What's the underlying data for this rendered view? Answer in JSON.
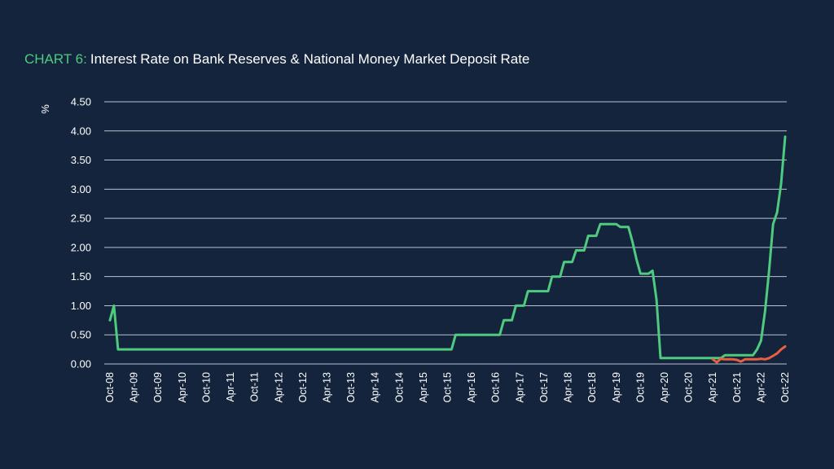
{
  "title_prefix": "CHART 6:",
  "title": "Interest Rate on Bank Reserves & National Money Market Deposit Rate",
  "colors": {
    "background": "#14243d",
    "title_prefix": "#4ecb7e",
    "series_1": "#4ecb7e",
    "series_2": "#e8603f",
    "grid": "#b9c2cf",
    "text": "#ffffff"
  },
  "chart_data": {
    "type": "line",
    "title": "Interest Rate on Bank Reserves & National Money Market Deposit Rate",
    "xlabel": "",
    "ylabel": "%",
    "ylim": [
      0,
      4.5
    ],
    "yticks": [
      "0.00",
      "0.50",
      "1.00",
      "1.50",
      "2.00",
      "2.50",
      "3.00",
      "3.50",
      "4.00",
      "4.50"
    ],
    "x_ticks": [
      "Oct-08",
      "Apr-09",
      "Oct-09",
      "Apr-10",
      "Oct-10",
      "Apr-11",
      "Oct-11",
      "Apr-12",
      "Oct-12",
      "Apr-13",
      "Oct-13",
      "Apr-14",
      "Oct-14",
      "Apr-15",
      "Oct-15",
      "Apr-16",
      "Oct-16",
      "Apr-17",
      "Oct-17",
      "Apr-18",
      "Oct-18",
      "Apr-19",
      "Oct-19",
      "Apr-20",
      "Oct-20",
      "Apr-21",
      "Oct-21",
      "Apr-22",
      "Oct-22"
    ],
    "grid": true,
    "legend": "none",
    "series": [
      {
        "color": "#4ecb7e",
        "points": [
          [
            "Oct-08",
            0.75
          ],
          [
            "Nov-08",
            1.0
          ],
          [
            "Dec-08",
            0.25
          ],
          [
            "Jan-09",
            0.25
          ],
          [
            "Nov-15",
            0.25
          ],
          [
            "Dec-15",
            0.5
          ],
          [
            "Nov-16",
            0.5
          ],
          [
            "Dec-16",
            0.75
          ],
          [
            "Feb-17",
            0.75
          ],
          [
            "Mar-17",
            1.0
          ],
          [
            "May-17",
            1.0
          ],
          [
            "Jun-17",
            1.25
          ],
          [
            "Nov-17",
            1.25
          ],
          [
            "Dec-17",
            1.5
          ],
          [
            "Feb-18",
            1.5
          ],
          [
            "Mar-18",
            1.75
          ],
          [
            "May-18",
            1.75
          ],
          [
            "Jun-18",
            1.95
          ],
          [
            "Aug-18",
            1.95
          ],
          [
            "Sep-18",
            2.2
          ],
          [
            "Nov-18",
            2.2
          ],
          [
            "Dec-18",
            2.4
          ],
          [
            "Apr-19",
            2.4
          ],
          [
            "May-19",
            2.35
          ],
          [
            "Jul-19",
            2.35
          ],
          [
            "Aug-19",
            2.1
          ],
          [
            "Sep-19",
            1.8
          ],
          [
            "Oct-19",
            1.55
          ],
          [
            "Dec-19",
            1.55
          ],
          [
            "Jan-20",
            1.6
          ],
          [
            "Feb-20",
            1.1
          ],
          [
            "Mar-20",
            0.1
          ],
          [
            "Jun-21",
            0.1
          ],
          [
            "Jul-21",
            0.15
          ],
          [
            "Feb-22",
            0.15
          ],
          [
            "Mar-22",
            0.25
          ],
          [
            "Apr-22",
            0.4
          ],
          [
            "May-22",
            0.9
          ],
          [
            "Jun-22",
            1.6
          ],
          [
            "Jul-22",
            2.4
          ],
          [
            "Aug-22",
            2.6
          ],
          [
            "Sep-22",
            3.1
          ],
          [
            "Oct-22",
            3.9
          ]
        ]
      },
      {
        "color": "#e8603f",
        "points": [
          [
            "Apr-21",
            0.08
          ],
          [
            "May-21",
            0.03
          ],
          [
            "Jun-21",
            0.09
          ],
          [
            "Jul-21",
            0.08
          ],
          [
            "Aug-21",
            0.08
          ],
          [
            "Sep-21",
            0.08
          ],
          [
            "Oct-21",
            0.07
          ],
          [
            "Nov-21",
            0.04
          ],
          [
            "Dec-21",
            0.08
          ],
          [
            "Jan-22",
            0.08
          ],
          [
            "Mar-22",
            0.08
          ],
          [
            "Apr-22",
            0.09
          ],
          [
            "May-22",
            0.08
          ],
          [
            "Jun-22",
            0.1
          ],
          [
            "Jul-22",
            0.14
          ],
          [
            "Aug-22",
            0.18
          ],
          [
            "Sep-22",
            0.25
          ],
          [
            "Oct-22",
            0.3
          ]
        ]
      }
    ]
  }
}
